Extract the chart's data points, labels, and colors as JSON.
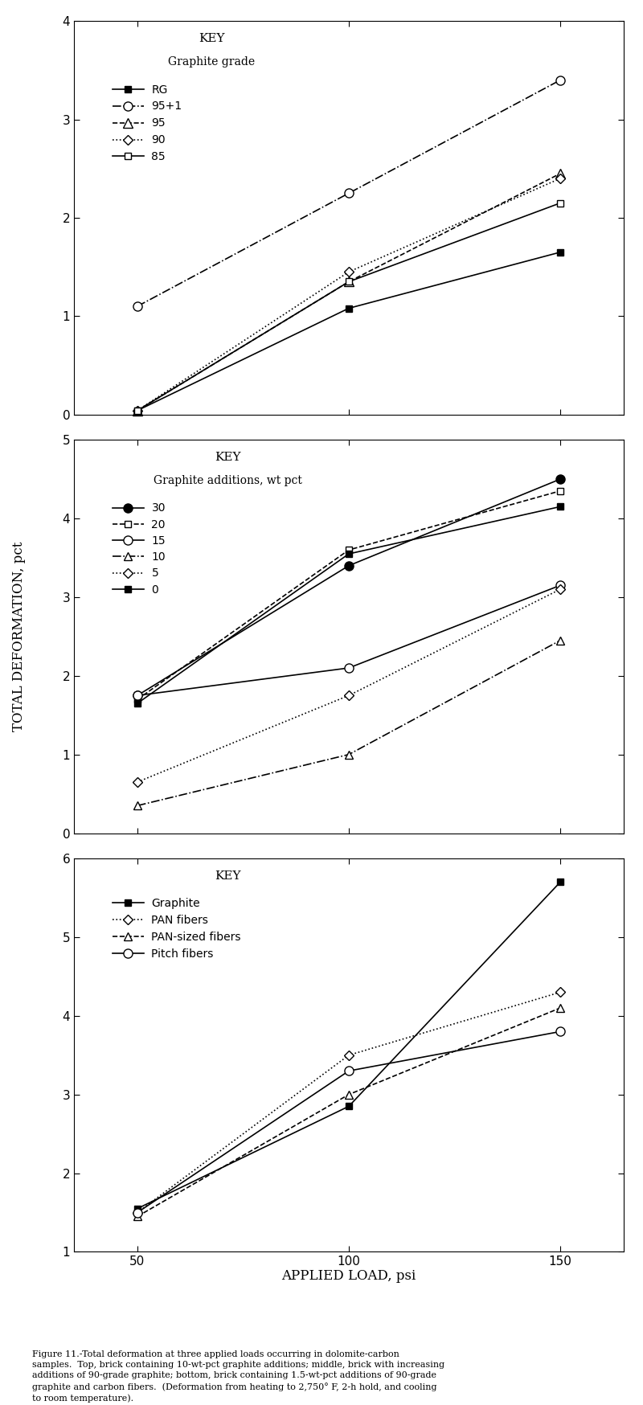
{
  "x_ticks": [
    50,
    100,
    150
  ],
  "xlabel": "APPLIED LOAD, psi",
  "ylabel": "TOTAL DEFORMATION, pct",
  "plot1": {
    "ylim": [
      0,
      4
    ],
    "yticks": [
      0,
      1,
      2,
      3,
      4
    ],
    "series": [
      {
        "label": "RG",
        "x": [
          50,
          100,
          150
        ],
        "y": [
          0.04,
          1.08,
          1.65
        ],
        "marker": "s",
        "markersize": 6,
        "linestyle": "-",
        "fillstyle": "full",
        "color": "black"
      },
      {
        "label": "95+1",
        "x": [
          50,
          100,
          150
        ],
        "y": [
          1.1,
          2.25,
          3.4
        ],
        "marker": "o",
        "markersize": 8,
        "linestyle": "-.",
        "fillstyle": "none",
        "color": "black"
      },
      {
        "label": "95",
        "x": [
          50,
          100,
          150
        ],
        "y": [
          0.04,
          1.35,
          2.45
        ],
        "marker": "^",
        "markersize": 8,
        "linestyle": "--",
        "fillstyle": "none",
        "color": "black"
      },
      {
        "label": "90",
        "x": [
          50,
          100,
          150
        ],
        "y": [
          0.04,
          1.45,
          2.4
        ],
        "marker": "D",
        "markersize": 6,
        "linestyle": ":",
        "fillstyle": "none",
        "color": "black"
      },
      {
        "label": "85",
        "x": [
          50,
          100,
          150
        ],
        "y": [
          0.04,
          1.35,
          2.15
        ],
        "marker": "s",
        "markersize": 6,
        "linestyle": "-",
        "fillstyle": "none",
        "color": "black"
      }
    ],
    "key_title1": "KEY",
    "key_title2": "Graphite grade"
  },
  "plot2": {
    "ylim": [
      0,
      5
    ],
    "yticks": [
      0,
      1,
      2,
      3,
      4,
      5
    ],
    "series": [
      {
        "label": "30",
        "x": [
          50,
          100,
          150
        ],
        "y": [
          1.75,
          3.4,
          4.5
        ],
        "marker": "o",
        "markersize": 8,
        "linestyle": "-",
        "fillstyle": "full",
        "color": "black"
      },
      {
        "label": "20",
        "x": [
          50,
          100,
          150
        ],
        "y": [
          1.7,
          3.6,
          4.35
        ],
        "marker": "s",
        "markersize": 6,
        "linestyle": "--",
        "fillstyle": "none",
        "color": "black"
      },
      {
        "label": "15",
        "x": [
          50,
          100,
          150
        ],
        "y": [
          1.75,
          2.1,
          3.15
        ],
        "marker": "o",
        "markersize": 8,
        "linestyle": "-",
        "fillstyle": "none",
        "color": "black"
      },
      {
        "label": "10",
        "x": [
          50,
          100,
          150
        ],
        "y": [
          0.35,
          1.0,
          2.45
        ],
        "marker": "^",
        "markersize": 7,
        "linestyle": "-.",
        "fillstyle": "none",
        "color": "black"
      },
      {
        "label": "5",
        "x": [
          50,
          100,
          150
        ],
        "y": [
          0.65,
          1.75,
          3.1
        ],
        "marker": "D",
        "markersize": 6,
        "linestyle": ":",
        "fillstyle": "none",
        "color": "black"
      },
      {
        "label": "0",
        "x": [
          50,
          100,
          150
        ],
        "y": [
          1.65,
          3.55,
          4.15
        ],
        "marker": "s",
        "markersize": 6,
        "linestyle": "-",
        "fillstyle": "full",
        "color": "black"
      }
    ],
    "key_title1": "KEY",
    "key_title2": "Graphite additions, wt pct"
  },
  "plot3": {
    "ylim": [
      1,
      6
    ],
    "yticks": [
      1,
      2,
      3,
      4,
      5,
      6
    ],
    "series": [
      {
        "label": "Graphite",
        "x": [
          50,
          100,
          150
        ],
        "y": [
          1.55,
          2.85,
          5.7
        ],
        "marker": "s",
        "markersize": 6,
        "linestyle": "-",
        "fillstyle": "full",
        "color": "black"
      },
      {
        "label": "PAN fibers",
        "x": [
          50,
          100,
          150
        ],
        "y": [
          1.5,
          3.5,
          4.3
        ],
        "marker": "D",
        "markersize": 6,
        "linestyle": ":",
        "fillstyle": "none",
        "color": "black"
      },
      {
        "label": "PAN-sized fibers",
        "x": [
          50,
          100,
          150
        ],
        "y": [
          1.45,
          3.0,
          4.1
        ],
        "marker": "^",
        "markersize": 7,
        "linestyle": "--",
        "fillstyle": "none",
        "color": "black"
      },
      {
        "label": "Pitch fibers",
        "x": [
          50,
          100,
          150
        ],
        "y": [
          1.5,
          3.3,
          3.8
        ],
        "marker": "o",
        "markersize": 8,
        "linestyle": "-",
        "fillstyle": "none",
        "color": "black"
      }
    ],
    "key_title1": "KEY",
    "key_title2": ""
  },
  "caption": "Figure 11.-Total deformation at three applied loads occurring in dolomite-carbon\nsamples.  Top, brick containing 10-wt-pct graphite additions; middle, brick with increasing\nadditions of 90-grade graphite; bottom, brick containing 1.5-wt-pct additions of 90-grade\ngraphite and carbon fibers.  (Deformation from heating to 2,750° F, 2-h hold, and cooling\nto room temperature)."
}
